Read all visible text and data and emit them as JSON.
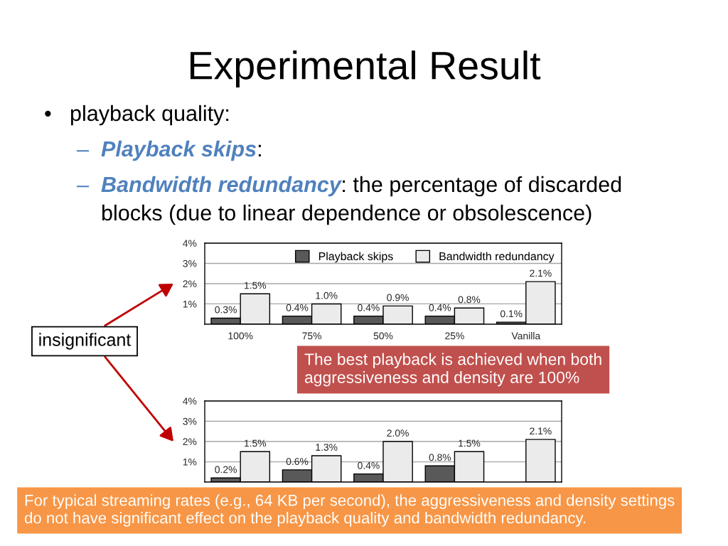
{
  "chart_data": [
    {
      "type": "bar",
      "title": "Experimental Result",
      "annotations": [
        "• playback quality:",
        "– Playback skips:",
        "– Bandwidth redundancy: the percentage of discarded\nblocks (due to linear dependence or obsolescence)",
        "insignificant",
        "The best playback is achieved when both\naggressiveness and density are 100%",
        "For typical streaming rates (e.g., 64 KB per second), the aggressiveness and density settings\ndo not have significant effect on the playback quality and bandwidth redundancy."
      ],
      "categories": [
        "100%",
        "75%",
        "50%",
        "25%",
        "Vanilla"
      ],
      "series": [
        {
          "name": "Playback skips",
          "color": "#595959",
          "values": [
            0.3,
            0.4,
            0.4,
            0.4,
            0.1
          ],
          "value_labels": [
            "0.3%",
            "0.4%",
            "0.4%",
            "0.4%",
            "0.1%"
          ]
        },
        {
          "name": "Bandwidth redundancy",
          "color": "#ebebeb",
          "values": [
            1.5,
            1.0,
            0.9,
            0.8,
            2.1
          ],
          "value_labels": [
            "1.5%",
            "1.0%",
            "0.9%",
            "0.8%",
            "2.1%"
          ]
        }
      ],
      "ylim": [
        0,
        4
      ],
      "yticks": [
        {
          "value": 1,
          "label": "1%"
        },
        {
          "value": 2,
          "label": "2%"
        },
        {
          "value": 3,
          "label": "3%"
        },
        {
          "value": 4,
          "label": "4%"
        }
      ],
      "grid": "y",
      "legend": "top right"
    },
    {
      "type": "bar",
      "categories": [
        null,
        null,
        null,
        null,
        null
      ],
      "series": [
        {
          "color": "#595959",
          "values": [
            0.2,
            0.6,
            0.4,
            0.8,
            null
          ],
          "value_labels": [
            "0.2%",
            "0.6%",
            "0.4%",
            "0.8%",
            null
          ]
        },
        {
          "color": "#ebebeb",
          "values": [
            1.5,
            1.3,
            2.0,
            1.5,
            2.1
          ],
          "value_labels": [
            "1.5%",
            "1.3%",
            "2.0%",
            "1.5%",
            "2.1%"
          ]
        }
      ],
      "ylim": [
        0,
        4
      ],
      "yticks": [
        {
          "value": 1,
          "label": "1%"
        },
        {
          "value": 2,
          "label": "2%"
        },
        {
          "value": 3,
          "label": "3%"
        },
        {
          "value": 4,
          "label": "4%"
        }
      ],
      "grid": "y",
      "tick_labels": "y"
    }
  ]
}
